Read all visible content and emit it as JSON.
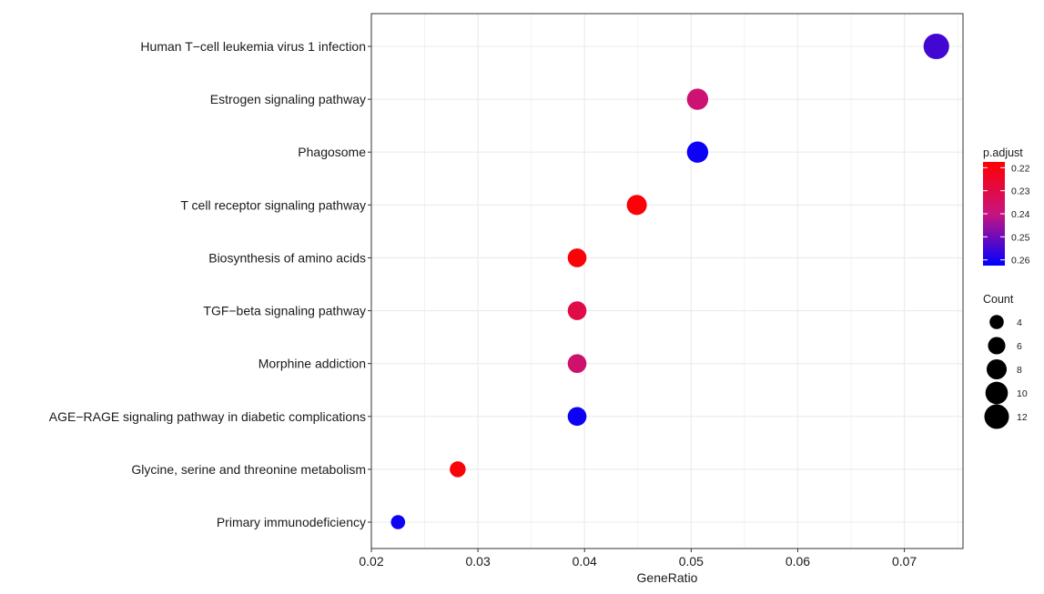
{
  "chart_data": {
    "type": "scatter",
    "title": "",
    "xlabel": "GeneRatio",
    "ylabel": "",
    "xlim": [
      0.02,
      0.0755
    ],
    "x_ticks": [
      0.02,
      0.03,
      0.04,
      0.05,
      0.06,
      0.07
    ],
    "x_tick_labels": [
      "0.02",
      "0.03",
      "0.04",
      "0.05",
      "0.06",
      "0.07"
    ],
    "grid": true,
    "categories": [
      "Human T−cell leukemia virus 1 infection",
      "Estrogen signaling pathway",
      "Phagosome",
      "T cell receptor signaling pathway",
      "Biosynthesis of amino acids",
      "TGF−beta signaling pathway",
      "Morphine addiction",
      "AGE−RAGE signaling pathway in diabetic complications",
      "Glycine, serine and threonine metabolism",
      "Primary immunodeficiency"
    ],
    "points": [
      {
        "category": "Human T−cell leukemia virus 1 infection",
        "gene_ratio": 0.073,
        "count": 13,
        "p_adjust": 0.255
      },
      {
        "category": "Estrogen signaling pathway",
        "gene_ratio": 0.0506,
        "count": 9,
        "p_adjust": 0.238
      },
      {
        "category": "Phagosome",
        "gene_ratio": 0.0506,
        "count": 9,
        "p_adjust": 0.261
      },
      {
        "category": "T cell receptor signaling pathway",
        "gene_ratio": 0.0449,
        "count": 8,
        "p_adjust": 0.219
      },
      {
        "category": "Biosynthesis of amino acids",
        "gene_ratio": 0.0393,
        "count": 7,
        "p_adjust": 0.219
      },
      {
        "category": "TGF−beta signaling pathway",
        "gene_ratio": 0.0393,
        "count": 7,
        "p_adjust": 0.23
      },
      {
        "category": "Morphine addiction",
        "gene_ratio": 0.0393,
        "count": 7,
        "p_adjust": 0.237
      },
      {
        "category": "AGE−RAGE signaling pathway in diabetic complications",
        "gene_ratio": 0.0393,
        "count": 7,
        "p_adjust": 0.261
      },
      {
        "category": "Glycine, serine and threonine metabolism",
        "gene_ratio": 0.0281,
        "count": 5,
        "p_adjust": 0.219
      },
      {
        "category": "Primary immunodeficiency",
        "gene_ratio": 0.0225,
        "count": 4,
        "p_adjust": 0.261
      }
    ],
    "color_legend": {
      "title": "p.adjust",
      "ticks": [
        0.22,
        0.23,
        0.24,
        0.25,
        0.26
      ],
      "tick_labels": [
        "0.22",
        "0.23",
        "0.24",
        "0.25",
        "0.26"
      ],
      "range": [
        0.2175,
        0.2625
      ],
      "low_color": "#ff0000",
      "high_color": "#0000ff"
    },
    "size_legend": {
      "title": "Count",
      "values": [
        4,
        6,
        8,
        10,
        12
      ],
      "labels": [
        "4",
        "6",
        "8",
        "10",
        "12"
      ]
    },
    "colors": {
      "panel_border": "#333333",
      "grid": "#ebebeb",
      "marker_fallback": "#000000"
    }
  }
}
